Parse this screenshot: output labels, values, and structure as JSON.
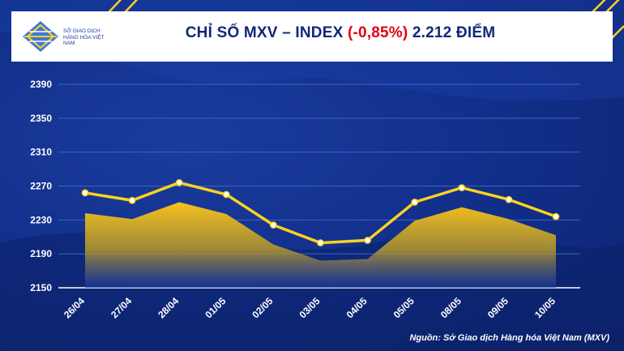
{
  "header": {
    "logo_text": "SỞ GIAO DỊCH HÀNG HÓA VIỆT NAM",
    "title_prefix": "CHỈ SỐ MXV – INDEX ",
    "title_change": "(-0,85%)",
    "title_suffix": " 2.212 ĐIỂM"
  },
  "source": "Nguồn: Sở Giao dịch Hàng hóa Việt Nam (MXV)",
  "colors": {
    "line": "#ffd21f",
    "area_top": "#f7c21b",
    "area_bottom": "#1a3aa0",
    "negative": "#e3000f",
    "title": "#10287a"
  },
  "chart_data": {
    "type": "line",
    "categories": [
      "26/04",
      "27/04",
      "28/04",
      "01/05",
      "02/05",
      "03/05",
      "04/05",
      "05/05",
      "08/05",
      "09/05",
      "10/05"
    ],
    "series": [
      {
        "values": [
          2262,
          2253,
          2274,
          2260,
          2224,
          2203,
          2206,
          2251,
          2268,
          2254,
          2234
        ]
      }
    ],
    "area_values": [
      2238,
      2231,
      2251,
      2237,
      2201,
      2182,
      2184,
      2229,
      2245,
      2231,
      2212
    ],
    "yticks": [
      2150,
      2190,
      2230,
      2270,
      2310,
      2350,
      2390
    ],
    "ylim": [
      2150,
      2390
    ],
    "grid": true
  }
}
